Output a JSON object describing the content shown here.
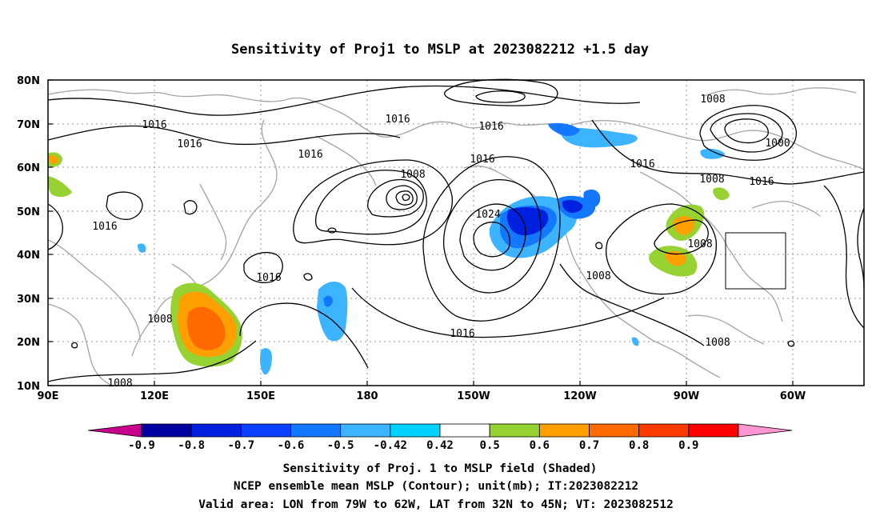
{
  "title": "Sensitivity of Proj1 to MSLP at 2023082212 +1.5 day",
  "lat_ticks": [
    "80N",
    "70N",
    "60N",
    "50N",
    "40N",
    "30N",
    "20N",
    "10N"
  ],
  "lon_ticks": [
    "90E",
    "120E",
    "150E",
    "180",
    "150W",
    "120W",
    "90W",
    "60W"
  ],
  "colorbar": {
    "labels": [
      "-0.9",
      "-0.8",
      "-0.7",
      "-0.6",
      "-0.5",
      "-0.42",
      "0.42",
      "0.5",
      "0.6",
      "0.7",
      "0.8",
      "0.9"
    ],
    "colors": [
      "#c8008c",
      "#0000a0",
      "#0020e0",
      "#0a40ff",
      "#1478ff",
      "#3cb4ff",
      "#00d2ff",
      "#ffffff",
      "#96d232",
      "#ff9f00",
      "#ff6a00",
      "#ff3a00",
      "#ff0000",
      "#ff96d2"
    ]
  },
  "isobar_labels": [
    {
      "text": "1016"
    },
    {
      "text": "1016"
    },
    {
      "text": "1016"
    },
    {
      "text": "1016"
    },
    {
      "text": "1016"
    },
    {
      "text": "1016"
    },
    {
      "text": "1016"
    },
    {
      "text": "1016"
    },
    {
      "text": "1016"
    },
    {
      "text": "1016"
    },
    {
      "text": "1008"
    },
    {
      "text": "1008"
    },
    {
      "text": "1008"
    },
    {
      "text": "1008"
    },
    {
      "text": "1008"
    },
    {
      "text": "1008"
    },
    {
      "text": "1008"
    },
    {
      "text": "1000"
    },
    {
      "text": "1024"
    },
    {
      "text": "1016"
    }
  ],
  "captions": [
    "Sensitivity of Proj. 1 to MSLP field (Shaded)",
    "NCEP ensemble mean MSLP (Contour); unit(mb); IT:2023082212",
    "Valid area: LON from 79W to 62W, LAT from 32N to 45N; VT: 2023082512"
  ],
  "valid_area": {
    "lon_from": "79W",
    "lon_to": "62W",
    "lat_from": "32N",
    "lat_to": "45N"
  }
}
